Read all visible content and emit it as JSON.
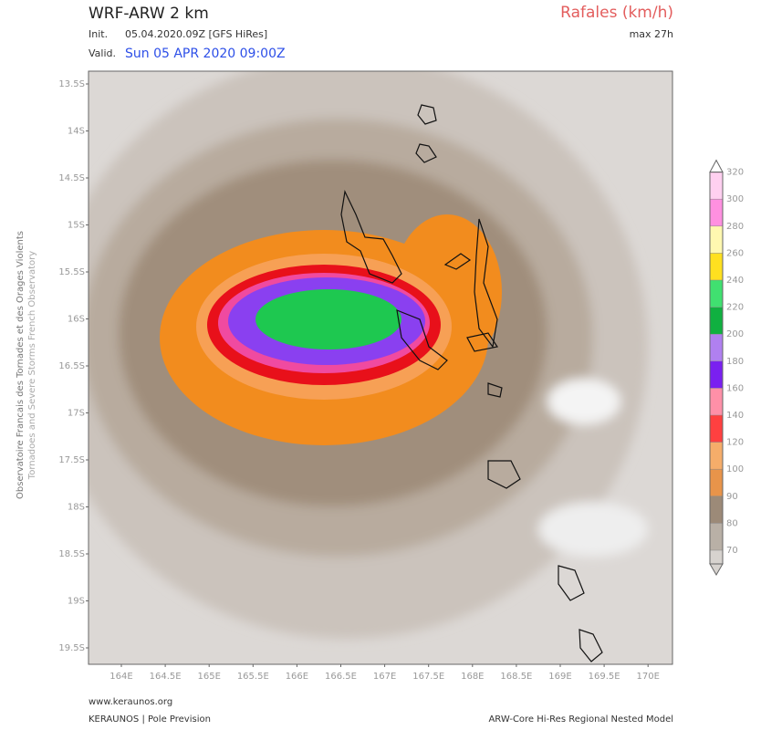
{
  "header": {
    "model": "WRF-ARW 2 km",
    "init_label": "Init.",
    "init": "05.04.2020.09Z [GFS HiRes]",
    "valid_label": "Valid.",
    "valid": "Sun 05 APR 2020 09:00Z",
    "variable": "Rafales (km/h)",
    "max": "max 27h"
  },
  "map": {
    "lat_labels": [
      "13.5S",
      "14S",
      "14.5S",
      "15S",
      "15.5S",
      "16S",
      "16.5S",
      "17S",
      "17.5S",
      "18S",
      "18.5S",
      "19S",
      "19.5S"
    ],
    "lon_labels": [
      "164E",
      "164.5E",
      "165E",
      "165.5E",
      "166E",
      "166.5E",
      "167E",
      "167.5E",
      "168E",
      "168.5E",
      "169E",
      "169.5E",
      "170E"
    ]
  },
  "colorbar": {
    "ticks": [
      "70",
      "80",
      "90",
      "100",
      "120",
      "140",
      "160",
      "180",
      "200",
      "220",
      "240",
      "260",
      "280",
      "300",
      "320"
    ]
  },
  "side_label": {
    "line1": "Observatoire Francais des Tornades et des Orages Violents",
    "line2": "Tornadoes and Severe Storms French Observatory"
  },
  "footer": {
    "website": "www.keraunos.org",
    "credit": "KERAUNOS | Pole Prevision",
    "model_note": "ARW-Core Hi-Res Regional Nested Model"
  }
}
